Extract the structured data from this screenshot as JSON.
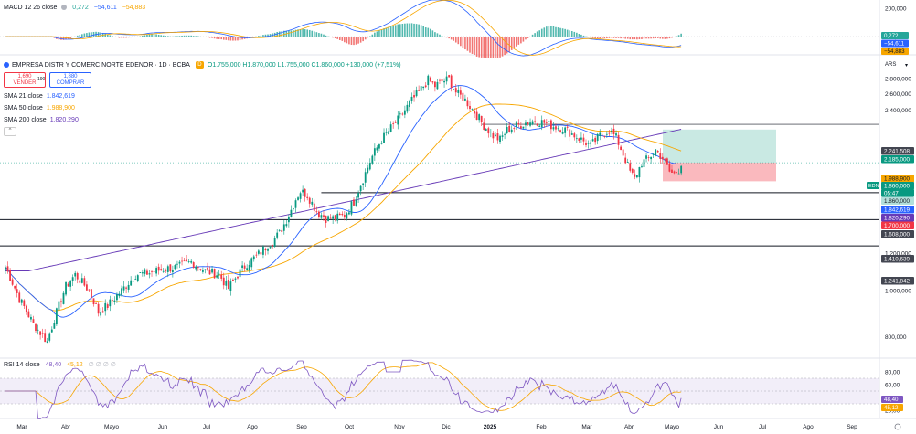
{
  "macd": {
    "label": "MACD 12 26 close",
    "values": [
      "0,272",
      "−54,611",
      "−54,883"
    ],
    "colors": [
      "#26a69a",
      "#2962ff",
      "#f7a600"
    ],
    "axis_ticks": [
      "200,000",
      "100,000"
    ],
    "badges": [
      "0,272",
      "−54,611",
      "−54,883"
    ]
  },
  "main": {
    "title": "EMPRESA DISTR Y COMERC NORTE EDENOR · 1D · BCBA",
    "badge": "D",
    "ohlc": "O1.755,000 H1.870,000 L1.755,000 C1.860,000 +130,000 (+7,51%)",
    "sell_price": "1,690",
    "sell_label": "VENDER",
    "spread": "190",
    "buy_price": "1,880",
    "buy_label": "COMPRAR",
    "currency": "ARS",
    "collapse_glyph": "^",
    "chevron_glyph": "▾",
    "icons": [
      "eye-icon",
      "settings-icon",
      "close-icon",
      "more-icon"
    ]
  },
  "sma": [
    {
      "label": "SMA 21 close",
      "value": "1.842,619",
      "color": "#2962ff"
    },
    {
      "label": "SMA 50 close",
      "value": "1.988,900",
      "color": "#f7a600"
    },
    {
      "label": "SMA 200 close",
      "value": "1.820,290",
      "color": "#673ab7"
    }
  ],
  "rsi": {
    "label": "RSI 14 close",
    "value": "48,40",
    "ma_value": "45,12",
    "value_color": "#7e57c2",
    "ma_color": "#f7a600",
    "axis_ticks": [
      "80,00",
      "60,00",
      "40,00",
      "20,00"
    ]
  },
  "price_axis": {
    "ticks": [
      "2.800,000",
      "2.600,000",
      "2.400,000",
      "1.200,000",
      "1.000,000",
      "800,000"
    ],
    "labels": [
      {
        "text": "2.241,508",
        "bg": "#434651",
        "fg": "#ffffff"
      },
      {
        "text": "2.185,000",
        "bg": "#089981",
        "fg": "#ffffff"
      },
      {
        "text": "1.988,900",
        "bg": "#f7a600",
        "fg": "#131722"
      },
      {
        "text": "1.860,000",
        "bg": "#089981",
        "fg": "#ffffff"
      },
      {
        "text": "05:47",
        "bg": "#089981",
        "fg": "#ffffff"
      },
      {
        "text": "1.860,000",
        "bg": "#b2dfdb",
        "fg": "#131722"
      },
      {
        "text": "1.842,619",
        "bg": "#2962ff",
        "fg": "#ffffff"
      },
      {
        "text": "1.820,290",
        "bg": "#673ab7",
        "fg": "#ffffff"
      },
      {
        "text": "1.700,000",
        "bg": "#f23645",
        "fg": "#ffffff"
      },
      {
        "text": "1.608,000",
        "bg": "#434651",
        "fg": "#ffffff"
      },
      {
        "text": "1.410,639",
        "bg": "#434651",
        "fg": "#ffffff"
      },
      {
        "text": "1.241,842",
        "bg": "#434651",
        "fg": "#ffffff"
      }
    ],
    "ticker_tag": "EDN"
  },
  "time_axis": {
    "labels": [
      "Mar",
      "Abr",
      "Mayo",
      "Jun",
      "Jul",
      "Ago",
      "Sep",
      "Oct",
      "Nov",
      "Dic",
      "2025",
      "Feb",
      "Mar",
      "Abr",
      "Mayo",
      "Jun",
      "Jul",
      "Ago",
      "Sep"
    ]
  },
  "chart_data": {
    "type": "candlestick",
    "ylim": [
      720,
      2900
    ],
    "horizontal_lines": [
      2241.508,
      1608,
      1410.639,
      1241.842
    ],
    "position_tool": {
      "entry": 1860,
      "target": 2185,
      "stop": 1700
    },
    "anchors": [
      [
        0,
        1120
      ],
      [
        6,
        960
      ],
      [
        12,
        850
      ],
      [
        18,
        780
      ],
      [
        22,
        900
      ],
      [
        26,
        1020
      ],
      [
        30,
        1080
      ],
      [
        36,
        1000
      ],
      [
        40,
        900
      ],
      [
        44,
        930
      ],
      [
        50,
        1000
      ],
      [
        56,
        1080
      ],
      [
        62,
        1090
      ],
      [
        68,
        1110
      ],
      [
        74,
        1120
      ],
      [
        80,
        1150
      ],
      [
        86,
        1100
      ],
      [
        92,
        1080
      ],
      [
        96,
        1010
      ],
      [
        100,
        1080
      ],
      [
        104,
        1140
      ],
      [
        108,
        1180
      ],
      [
        114,
        1260
      ],
      [
        118,
        1320
      ],
      [
        122,
        1440
      ],
      [
        125,
        1560
      ],
      [
        127,
        1620
      ],
      [
        130,
        1590
      ],
      [
        134,
        1470
      ],
      [
        138,
        1420
      ],
      [
        142,
        1420
      ],
      [
        146,
        1440
      ],
      [
        150,
        1540
      ],
      [
        154,
        1720
      ],
      [
        158,
        1920
      ],
      [
        162,
        2080
      ],
      [
        166,
        2200
      ],
      [
        170,
        2320
      ],
      [
        174,
        2480
      ],
      [
        178,
        2620
      ],
      [
        182,
        2780
      ],
      [
        185,
        2700
      ],
      [
        188,
        2760
      ],
      [
        191,
        2790
      ],
      [
        194,
        2620
      ],
      [
        198,
        2520
      ],
      [
        202,
        2380
      ],
      [
        206,
        2230
      ],
      [
        210,
        2120
      ],
      [
        213,
        2080
      ],
      [
        216,
        2180
      ],
      [
        220,
        2220
      ],
      [
        224,
        2260
      ],
      [
        228,
        2280
      ],
      [
        232,
        2260
      ],
      [
        236,
        2220
      ],
      [
        240,
        2200
      ],
      [
        244,
        2140
      ],
      [
        248,
        2080
      ],
      [
        252,
        2020
      ],
      [
        256,
        2120
      ],
      [
        260,
        2180
      ],
      [
        263,
        2100
      ],
      [
        266,
        1940
      ],
      [
        269,
        1780
      ],
      [
        271,
        1720
      ],
      [
        274,
        1860
      ],
      [
        277,
        1900
      ],
      [
        280,
        1980
      ],
      [
        283,
        1900
      ],
      [
        286,
        1780
      ],
      [
        288,
        1760
      ],
      [
        290,
        1800
      ],
      [
        291,
        1860
      ]
    ]
  }
}
